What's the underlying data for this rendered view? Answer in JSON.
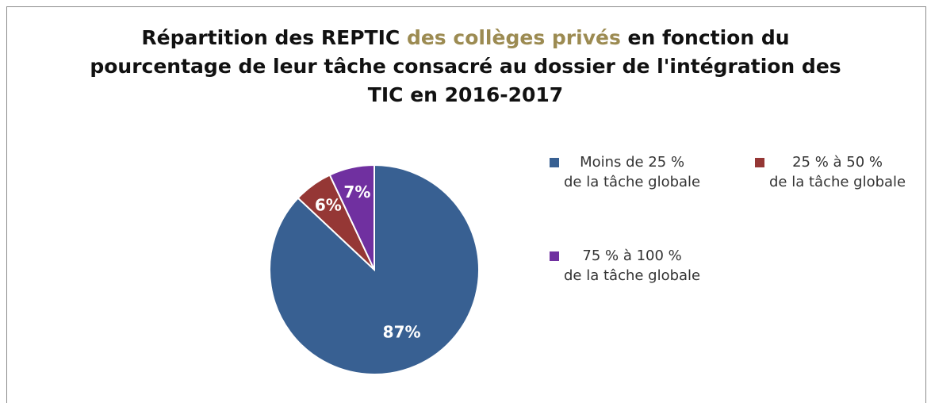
{
  "chart_data": {
    "type": "pie",
    "title": [
      [
        {
          "text": "Répartition des REPTIC ",
          "color": "#111111"
        },
        {
          "text": "des collèges privés",
          "color": "#9c8b52"
        },
        {
          "text": " en fonction du",
          "color": "#111111"
        }
      ],
      [
        {
          "text": "pourcentage de leur tâche consacré au dossier de l'intégration des",
          "color": "#111111"
        }
      ],
      [
        {
          "text": "TIC en 2016-2017",
          "color": "#111111"
        }
      ]
    ],
    "categories": [
      "Moins de  25 %\nde la tâche globale",
      "25 % à  50 %\nde la tâche globale",
      "75 % à 100 %\nde la tâche globale"
    ],
    "values": [
      87,
      6,
      7
    ],
    "value_labels": [
      "87%",
      "6%",
      "7%"
    ],
    "colors": [
      "#386092",
      "#953735",
      "#7030a0"
    ],
    "legend": "right"
  }
}
